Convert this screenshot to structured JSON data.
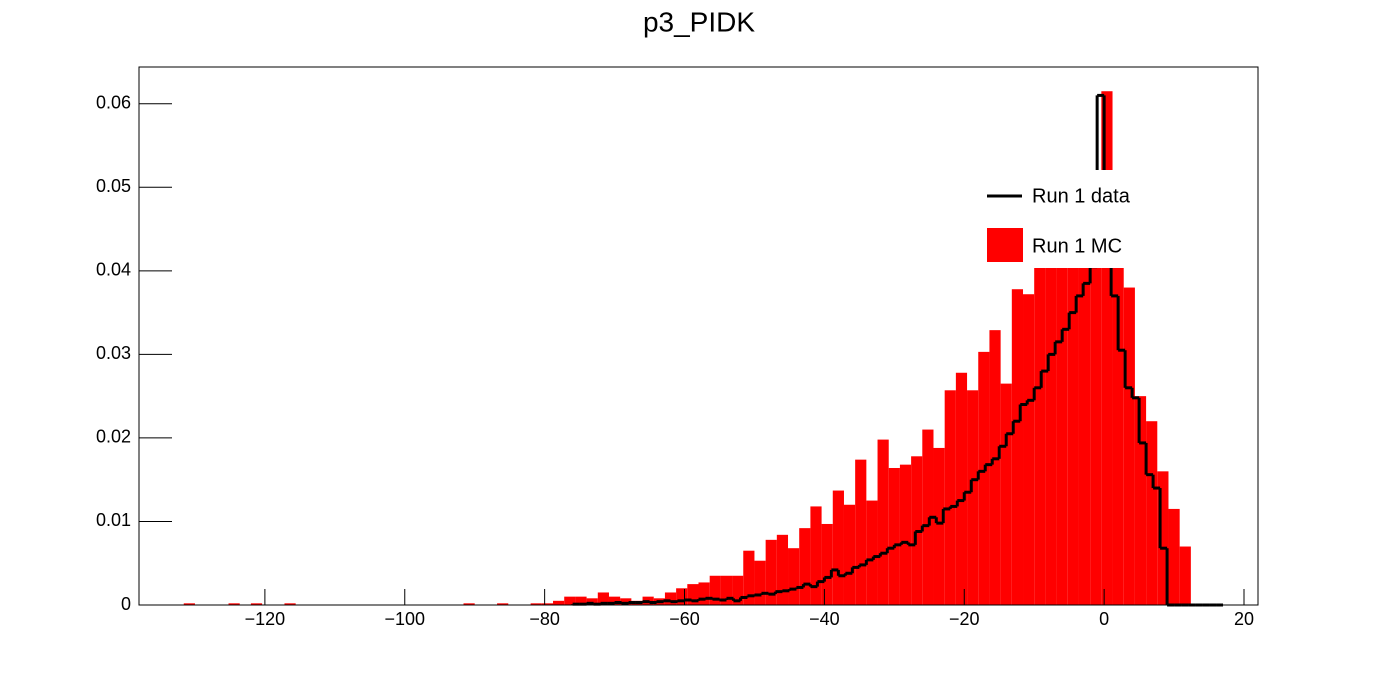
{
  "chart_data": {
    "type": "histogram",
    "title": "p3_PIDK",
    "xlim": [
      -138,
      22
    ],
    "ylim": [
      0,
      0.0644
    ],
    "xticks": [
      {
        "value": -120,
        "label": "−120"
      },
      {
        "value": -100,
        "label": "−100"
      },
      {
        "value": -80,
        "label": "−80"
      },
      {
        "value": -60,
        "label": "−60"
      },
      {
        "value": -40,
        "label": "−40"
      },
      {
        "value": -20,
        "label": "−20"
      },
      0,
      20
    ],
    "yticks": [
      0,
      0.01,
      0.02,
      0.03,
      0.04,
      0.05,
      0.06
    ],
    "legend": "upper right",
    "series": [
      {
        "name": "Run 1 MC",
        "color": "#ff0000",
        "style": "filled",
        "bins": [
          -138,
          -136.4,
          -134.8,
          -133.2,
          -131.6,
          -130,
          -128.4,
          -126.8,
          -125.2,
          -123.6,
          -122,
          -120.4,
          -118.8,
          -117.2,
          -115.6,
          -114,
          -112.4,
          -110.8,
          -109.2,
          -107.6,
          -106,
          -104.4,
          -102.8,
          -101.2,
          -99.6,
          -98,
          -96.4,
          -94.8,
          -93.2,
          -91.6,
          -90,
          -88.4,
          -86.8,
          -85.2,
          -83.6,
          -82,
          -80.4,
          -78.8,
          -77.2,
          -75.6,
          -74,
          -72.4,
          -70.8,
          -69.2,
          -67.6,
          -66,
          -64.4,
          -62.8,
          -61.2,
          -59.6,
          -58,
          -56.4,
          -54.8,
          -53.2,
          -51.6,
          -50,
          -48.4,
          -46.8,
          -45.2,
          -43.6,
          -42,
          -40.4,
          -38.8,
          -37.2,
          -35.6,
          -34,
          -32.4,
          -30.8,
          -29.2,
          -27.6,
          -26,
          -24.4,
          -22.8,
          -21.2,
          -19.6,
          -18,
          -16.4,
          -14.8,
          -13.2,
          -11.6,
          -10,
          -8.4,
          -6.8,
          -5.2,
          -3.6,
          -2,
          -0.4,
          1.2,
          2.8,
          4.4,
          6,
          7.6,
          9.2,
          10.8,
          12.4,
          14,
          15.6,
          17.2,
          18.8,
          20.4,
          22
        ],
        "values": [
          0,
          0,
          0,
          0,
          0.0002,
          0,
          0,
          0,
          0.0002,
          0,
          0.0002,
          0,
          0,
          0.0002,
          0,
          0,
          0,
          0,
          0,
          0,
          0,
          0,
          0,
          0,
          0,
          0,
          0,
          0,
          0,
          0.0002,
          0,
          0,
          0.0002,
          0,
          0,
          0.0002,
          0.0002,
          0.0005,
          0.001,
          0.001,
          0.0008,
          0.0015,
          0.001,
          0.0008,
          0.0005,
          0.001,
          0.0008,
          0.0015,
          0.002,
          0.0025,
          0.0027,
          0.0035,
          0.0035,
          0.0035,
          0.0065,
          0.0053,
          0.0078,
          0.0084,
          0.0068,
          0.0092,
          0.0118,
          0.0097,
          0.0137,
          0.012,
          0.0174,
          0.0125,
          0.0198,
          0.0164,
          0.0168,
          0.0178,
          0.021,
          0.0188,
          0.0257,
          0.0278,
          0.0257,
          0.0303,
          0.0329,
          0.0265,
          0.0378,
          0.0372,
          0.0405,
          0.042,
          0.043,
          0.044,
          0.0455,
          0.0475,
          0.0615,
          0.0435,
          0.038,
          0.025,
          0.022,
          0.016,
          0.0115,
          0.007,
          0,
          0,
          0,
          0,
          0,
          0
        ]
      },
      {
        "name": "Run 1 data",
        "color": "#000000",
        "style": "step",
        "bins": [
          -76,
          -75,
          -74,
          -73,
          -72,
          -71,
          -70,
          -69,
          -68,
          -67,
          -66,
          -65,
          -64,
          -63,
          -62,
          -61,
          -60,
          -59,
          -58,
          -57,
          -56,
          -55,
          -54,
          -53,
          -52,
          -51,
          -50,
          -49,
          -48,
          -47,
          -46,
          -45,
          -44,
          -43,
          -42,
          -41,
          -40,
          -39,
          -38,
          -37,
          -36,
          -35,
          -34,
          -33,
          -32,
          -31,
          -30,
          -29,
          -28,
          -27,
          -26,
          -25,
          -24,
          -23,
          -22,
          -21,
          -20,
          -19,
          -18,
          -17,
          -16,
          -15,
          -14,
          -13,
          -12,
          -11,
          -10,
          -9,
          -8,
          -7,
          -6,
          -5,
          -4,
          -3,
          -2,
          -1,
          0,
          1,
          2,
          3,
          4,
          5,
          6,
          7,
          8,
          9,
          10,
          11,
          12,
          13,
          14,
          15,
          16,
          17
        ],
        "values": [
          0.0001,
          0.0001,
          0.0002,
          0.0001,
          0.0002,
          0.0002,
          0.0003,
          0.0002,
          0.0003,
          0.0003,
          0.0004,
          0.0003,
          0.0004,
          0.0005,
          0.0004,
          0.0005,
          0.0006,
          0.0005,
          0.0007,
          0.0008,
          0.0007,
          0.0006,
          0.0008,
          0.0005,
          0.0009,
          0.0011,
          0.0012,
          0.0014,
          0.0013,
          0.0016,
          0.0017,
          0.0019,
          0.0021,
          0.0025,
          0.0022,
          0.0028,
          0.0033,
          0.0042,
          0.0035,
          0.0038,
          0.0045,
          0.0048,
          0.0054,
          0.0058,
          0.0062,
          0.0068,
          0.0072,
          0.0075,
          0.0072,
          0.0088,
          0.0095,
          0.0105,
          0.0098,
          0.0115,
          0.0118,
          0.0125,
          0.0135,
          0.015,
          0.016,
          0.0168,
          0.0175,
          0.019,
          0.0205,
          0.022,
          0.024,
          0.0245,
          0.026,
          0.028,
          0.03,
          0.0315,
          0.033,
          0.035,
          0.037,
          0.0385,
          0.0405,
          0.061,
          0.042,
          0.037,
          0.0305,
          0.026,
          0.0248,
          0.0194,
          0.0156,
          0.014,
          0.0068,
          0,
          0,
          0,
          0,
          0,
          0,
          0,
          0
        ]
      }
    ]
  }
}
